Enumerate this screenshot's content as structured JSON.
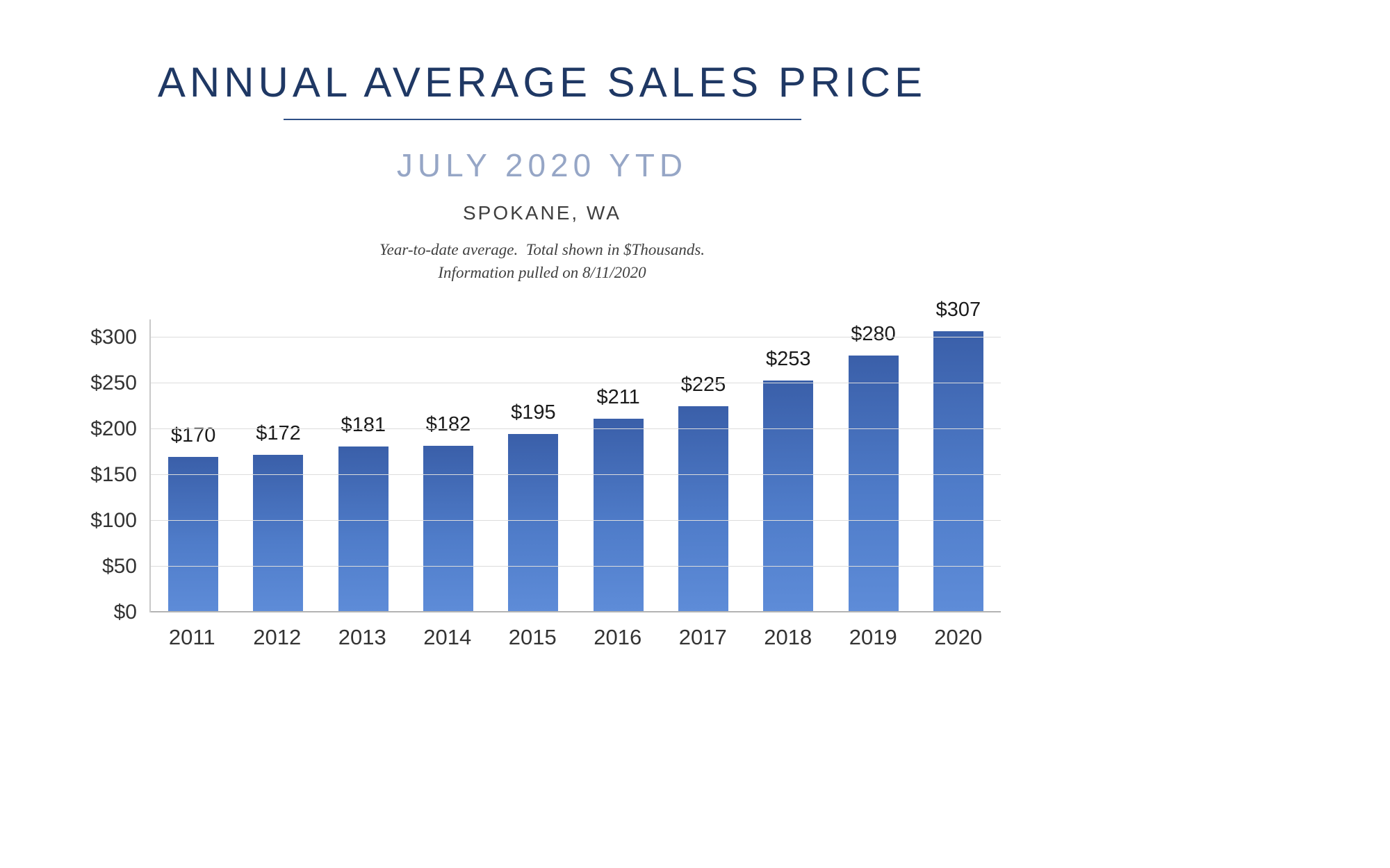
{
  "header": {
    "title": "ANNUAL AVERAGE SALES PRICE",
    "subtitle": "JULY 2020 YTD",
    "location": "SPOKANE, WA",
    "note_line1": "Year-to-date average.  Total shown in $Thousands.",
    "note_line2": "Information pulled on 8/11/2020"
  },
  "colors": {
    "title_navy": "#1f3864",
    "subtitle_blue_gray": "#96a6c6",
    "bar_gradient_top": "#3a5fa9",
    "bar_gradient_bottom": "#5e8cd8",
    "gridline": "#dcdcdc",
    "axis_line": "#c9c9c9",
    "body_text": "#404040"
  },
  "chart_data": {
    "type": "bar",
    "title": "Annual Average Sales Price - July 2020 YTD - Spokane, WA",
    "xlabel": "",
    "ylabel": "",
    "units": "$Thousands",
    "categories": [
      "2011",
      "2012",
      "2013",
      "2014",
      "2015",
      "2016",
      "2017",
      "2018",
      "2019",
      "2020"
    ],
    "values": [
      170,
      172,
      181,
      182,
      195,
      211,
      225,
      253,
      280,
      307
    ],
    "value_labels": [
      "$170",
      "$172",
      "$181",
      "$182",
      "$195",
      "$211",
      "$225",
      "$253",
      "$280",
      "$307"
    ],
    "ylim": [
      0,
      320
    ],
    "yticks": [
      {
        "value": 0,
        "label": "$0"
      },
      {
        "value": 50,
        "label": "$50"
      },
      {
        "value": 100,
        "label": "$100"
      },
      {
        "value": 150,
        "label": "$150"
      },
      {
        "value": 200,
        "label": "$200"
      },
      {
        "value": 250,
        "label": "$250"
      },
      {
        "value": 300,
        "label": "$300"
      }
    ],
    "grid": true,
    "legend": false
  }
}
